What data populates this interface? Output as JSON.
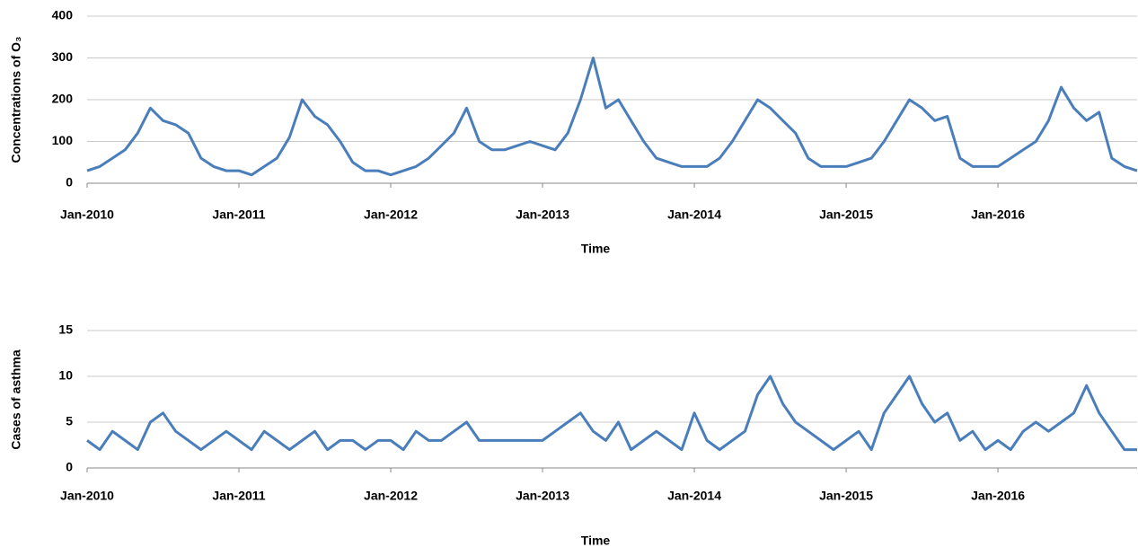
{
  "chart_data": [
    {
      "type": "line",
      "y_label": "Concentrations of O₃",
      "x_label": "Time",
      "categories": [
        "Jan-2010",
        null,
        null,
        null,
        null,
        null,
        null,
        null,
        null,
        null,
        null,
        null,
        "Jan-2011",
        null,
        null,
        null,
        null,
        null,
        null,
        null,
        null,
        null,
        null,
        null,
        "Jan-2012",
        null,
        null,
        null,
        null,
        null,
        null,
        null,
        null,
        null,
        null,
        null,
        "Jan-2013",
        null,
        null,
        null,
        null,
        null,
        null,
        null,
        null,
        null,
        null,
        null,
        "Jan-2014",
        null,
        null,
        null,
        null,
        null,
        null,
        null,
        null,
        null,
        null,
        null,
        "Jan-2015",
        null,
        null,
        null,
        null,
        null,
        null,
        null,
        null,
        null,
        null,
        null,
        "Jan-2016",
        null,
        null,
        null,
        null,
        null,
        null,
        null,
        null,
        null,
        null,
        null
      ],
      "series": [
        {
          "color": "#4a7ebb",
          "values": [
            30,
            40,
            60,
            80,
            120,
            180,
            150,
            140,
            120,
            60,
            40,
            30,
            30,
            20,
            40,
            60,
            110,
            200,
            160,
            140,
            100,
            50,
            30,
            30,
            20,
            30,
            40,
            60,
            90,
            120,
            180,
            100,
            80,
            80,
            90,
            100,
            90,
            80,
            120,
            200,
            300,
            180,
            200,
            150,
            100,
            60,
            50,
            40,
            40,
            40,
            60,
            100,
            150,
            200,
            180,
            150,
            120,
            60,
            40,
            40,
            40,
            50,
            60,
            100,
            150,
            200,
            180,
            150,
            160,
            60,
            40,
            40,
            40,
            60,
            80,
            100,
            150,
            230,
            180,
            150,
            170,
            60,
            40,
            30
          ]
        }
      ],
      "ylim": [
        0,
        400
      ],
      "yticks": [
        0,
        100,
        200,
        300,
        400
      ],
      "grid": true
    },
    {
      "type": "line",
      "y_label": "Cases of asthma",
      "x_label": "Time",
      "categories": [
        "Jan-2010",
        null,
        null,
        null,
        null,
        null,
        null,
        null,
        null,
        null,
        null,
        null,
        "Jan-2011",
        null,
        null,
        null,
        null,
        null,
        null,
        null,
        null,
        null,
        null,
        null,
        "Jan-2012",
        null,
        null,
        null,
        null,
        null,
        null,
        null,
        null,
        null,
        null,
        null,
        "Jan-2013",
        null,
        null,
        null,
        null,
        null,
        null,
        null,
        null,
        null,
        null,
        null,
        "Jan-2014",
        null,
        null,
        null,
        null,
        null,
        null,
        null,
        null,
        null,
        null,
        null,
        "Jan-2015",
        null,
        null,
        null,
        null,
        null,
        null,
        null,
        null,
        null,
        null,
        null,
        "Jan-2016",
        null,
        null,
        null,
        null,
        null,
        null,
        null,
        null,
        null,
        null,
        null
      ],
      "series": [
        {
          "color": "#4a7ebb",
          "values": [
            3,
            2,
            4,
            3,
            2,
            5,
            6,
            4,
            3,
            2,
            3,
            4,
            3,
            2,
            4,
            3,
            2,
            3,
            4,
            2,
            3,
            3,
            2,
            3,
            3,
            2,
            4,
            3,
            3,
            4,
            5,
            3,
            3,
            3,
            3,
            3,
            3,
            4,
            5,
            6,
            4,
            3,
            5,
            2,
            3,
            4,
            3,
            2,
            6,
            3,
            2,
            3,
            4,
            8,
            10,
            7,
            5,
            4,
            3,
            2,
            3,
            4,
            2,
            6,
            8,
            10,
            7,
            5,
            6,
            3,
            4,
            2,
            3,
            2,
            4,
            5,
            4,
            5,
            6,
            9,
            6,
            4,
            2,
            2
          ]
        }
      ],
      "ylim": [
        0,
        15
      ],
      "yticks": [
        0,
        5,
        10,
        15
      ],
      "grid": true
    }
  ]
}
